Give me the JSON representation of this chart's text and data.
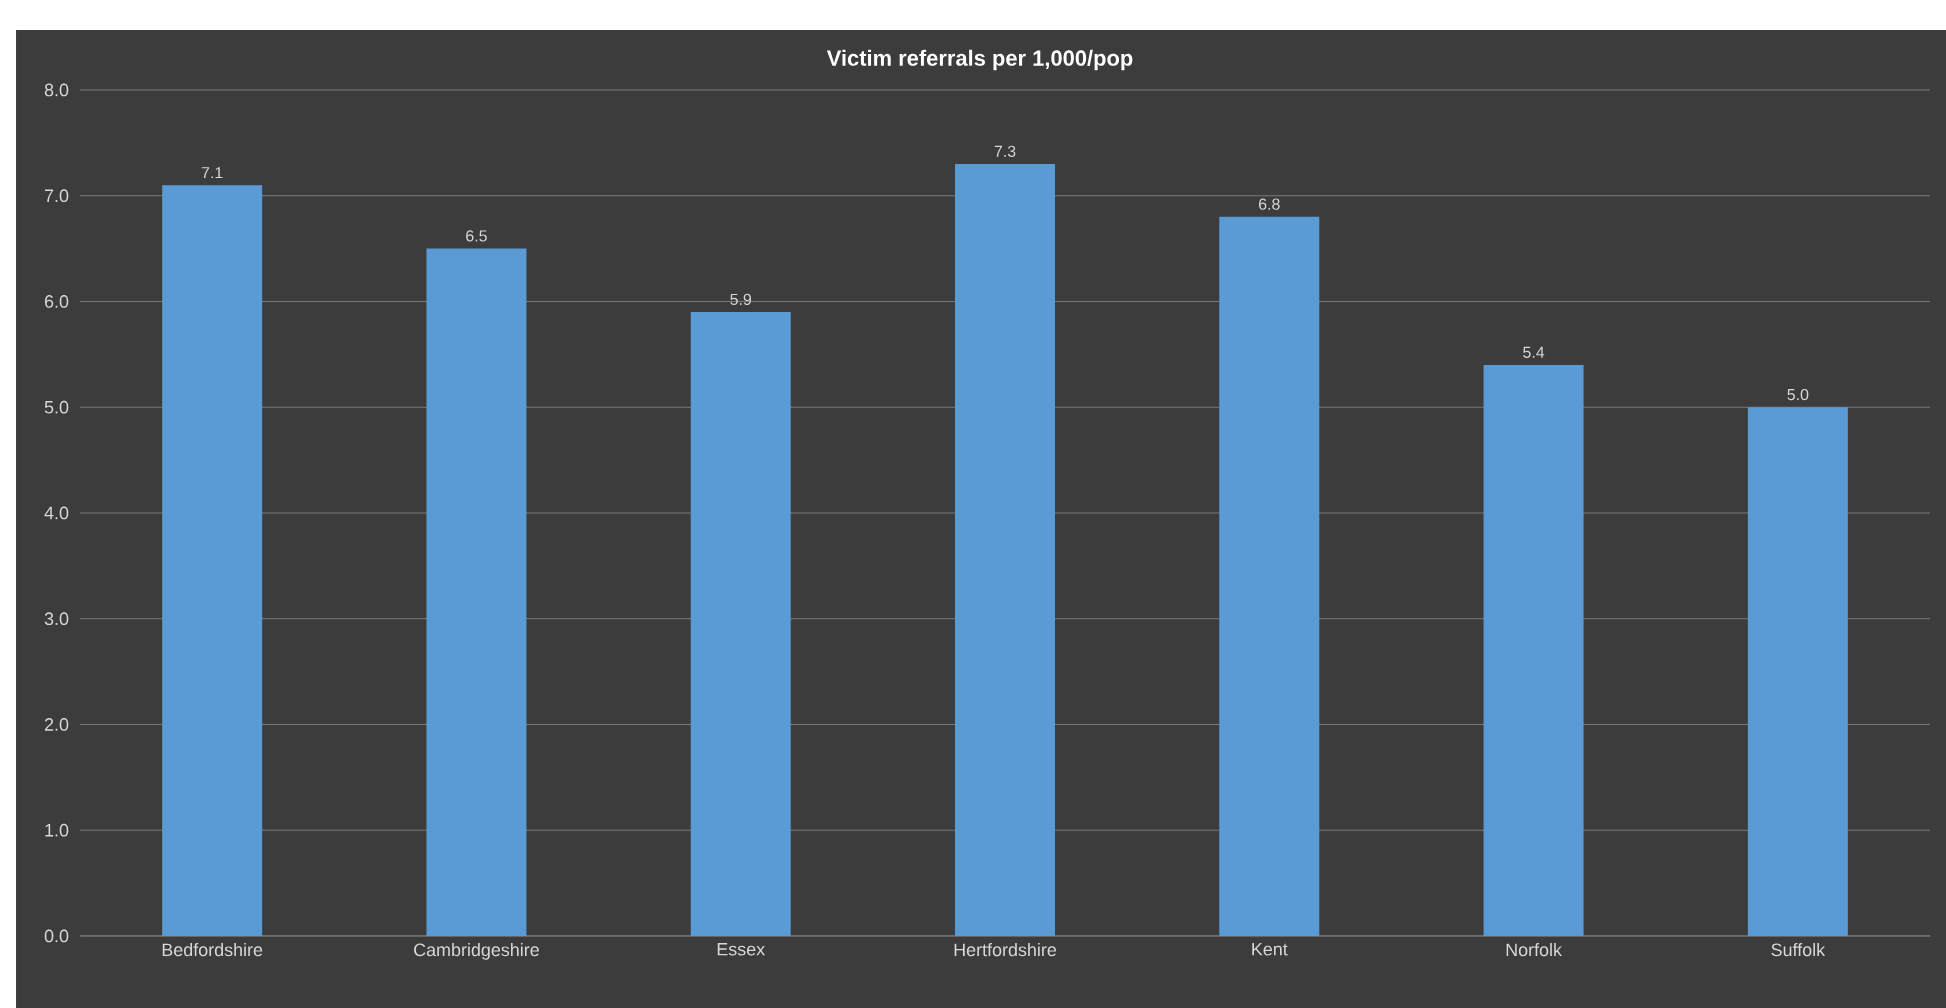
{
  "chart_data": {
    "type": "bar",
    "title": "Victim referrals per 1,000/pop",
    "categories": [
      "Bedfordshire",
      "Cambridgeshire",
      "Essex",
      "Hertfordshire",
      "Kent",
      "Norfolk",
      "Suffolk"
    ],
    "values": [
      7.1,
      6.5,
      5.9,
      7.3,
      6.8,
      5.4,
      5.0
    ],
    "value_labels": [
      "7.1",
      "6.5",
      "5.9",
      "7.3",
      "6.8",
      "5.4",
      "5.0"
    ],
    "color": "#5b9bd5",
    "ylim": [
      0,
      8
    ],
    "yticks": [
      {
        "value": 0,
        "label": "0.0"
      },
      {
        "value": 1,
        "label": "1.0"
      },
      {
        "value": 2,
        "label": "2.0"
      },
      {
        "value": 3,
        "label": "3.0"
      },
      {
        "value": 4,
        "label": "4.0"
      },
      {
        "value": 5,
        "label": "5.0"
      },
      {
        "value": 6,
        "label": "6.0"
      },
      {
        "value": 7,
        "label": "7.0"
      },
      {
        "value": 8,
        "label": "8.0"
      }
    ],
    "grid": "y"
  }
}
